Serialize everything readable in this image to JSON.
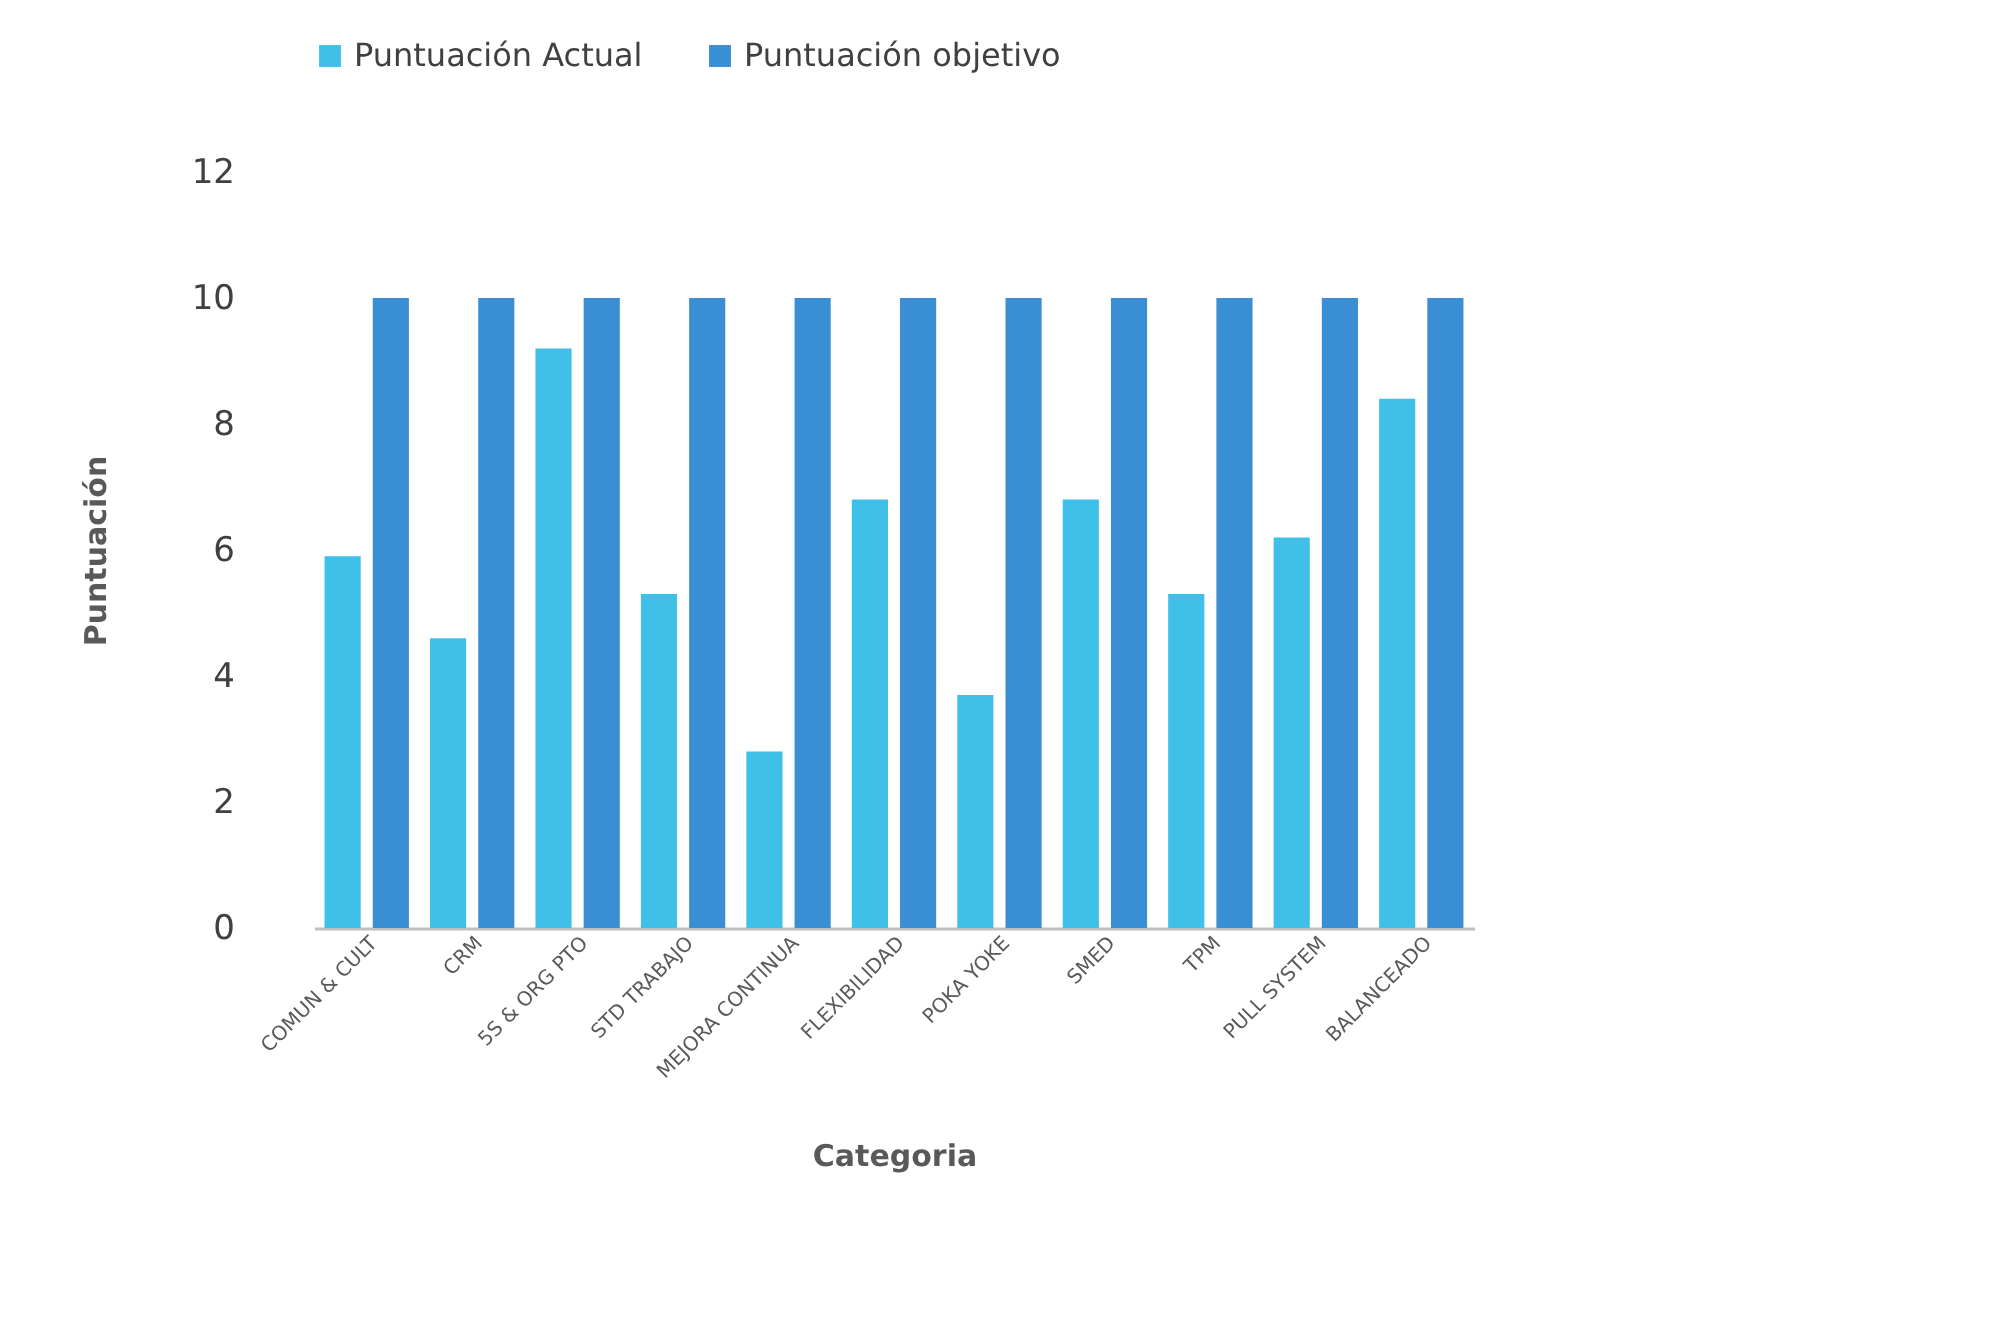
{
  "chart_data": {
    "type": "bar",
    "xlabel": "Categoria",
    "ylabel": "Puntuación",
    "categories": [
      "COMUN & CULT",
      "CRM",
      "5S & ORG PTO",
      "STD TRABAJO",
      "MEJORA CONTINUA",
      "FLEXIBILIDAD",
      "POKA YOKE",
      "SMED",
      "TPM",
      "PULL SYSTEM",
      "BALANCEADO"
    ],
    "series": [
      {
        "name": "Puntuación Actual",
        "color": "#3fc0e8",
        "values": [
          5.9,
          4.6,
          9.2,
          5.3,
          2.8,
          6.8,
          3.7,
          6.8,
          5.3,
          6.2,
          8.4
        ]
      },
      {
        "name": "Puntuación objetivo",
        "color": "#3a8fd4",
        "values": [
          10,
          10,
          10,
          10,
          10,
          10,
          10,
          10,
          10,
          10,
          10
        ]
      }
    ],
    "ylim": [
      0,
      12
    ],
    "yticks": [
      0,
      2,
      4,
      6,
      8,
      10,
      12
    ],
    "grid": false,
    "legend": "top"
  }
}
